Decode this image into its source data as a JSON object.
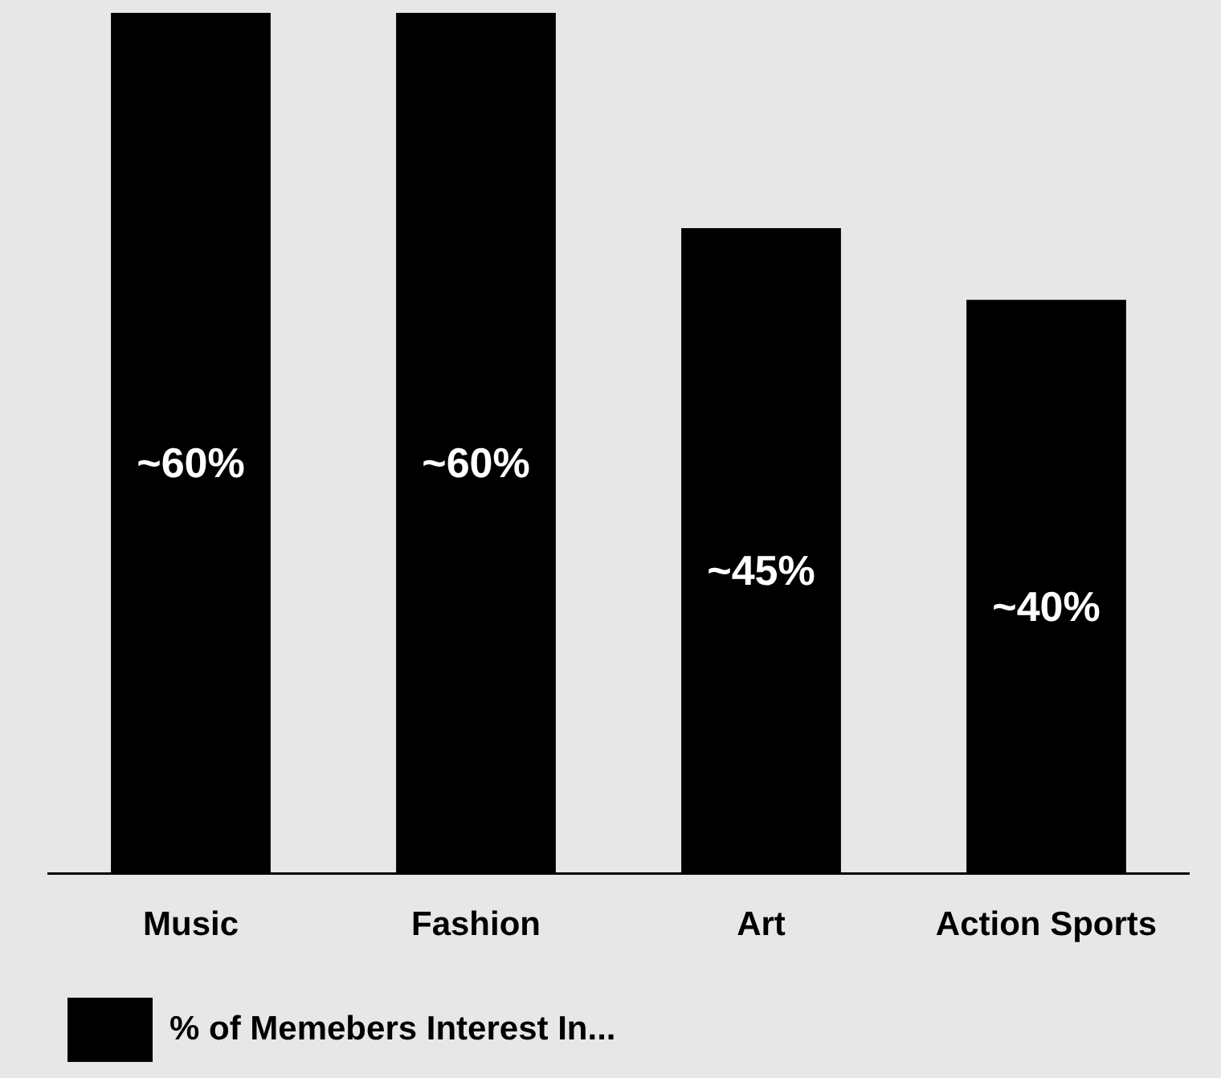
{
  "chart_data": {
    "type": "bar",
    "categories": [
      "Music",
      "Fashion",
      "Art",
      "Action Sports"
    ],
    "series": [
      {
        "name": "% of Memebers Interest In...",
        "color": "#000000",
        "values": [
          60,
          60,
          45,
          40
        ],
        "value_labels": [
          "~60%",
          "~60%",
          "~45%",
          "~40%"
        ]
      }
    ],
    "legend": "bottom left",
    "grid": false
  }
}
